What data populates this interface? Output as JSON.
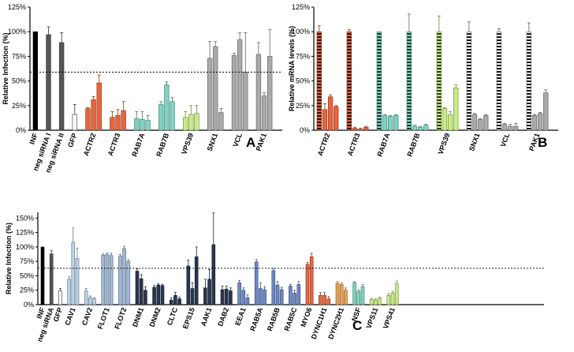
{
  "chart_data": [
    {
      "panel": "A",
      "type": "bar",
      "ylabel": "Relative Infection (%)",
      "ylim": [
        0,
        125
      ],
      "yticks": [
        "0%",
        "25%",
        "50%",
        "75%",
        "100%",
        "125%"
      ],
      "reference_line": 59,
      "groups": [
        {
          "name": "INF",
          "color": "#000000",
          "values": [
            100
          ],
          "errors": [
            0
          ]
        },
        {
          "name": "neg siRNA I",
          "color": "#555555",
          "values": [
            97
          ],
          "errors": [
            8
          ]
        },
        {
          "name": "neg siRNA II",
          "color": "#555555",
          "values": [
            89
          ],
          "errors": [
            10
          ]
        },
        {
          "name": "GFP",
          "color": "#ffffff",
          "values": [
            16
          ],
          "errors": [
            10
          ]
        },
        {
          "name": "ACTR2",
          "color": "#e8643c",
          "values": [
            22,
            31,
            48
          ],
          "errors": [
            1,
            3,
            8
          ]
        },
        {
          "name": "ACTR3",
          "color": "#e8643c",
          "values": [
            13,
            15,
            20
          ],
          "errors": [
            6,
            6,
            9
          ]
        },
        {
          "name": "RAB7A",
          "color": "#7fd3c1",
          "values": [
            12,
            11,
            10
          ],
          "errors": [
            7,
            8,
            5
          ]
        },
        {
          "name": "RAB7B",
          "color": "#7fd3c1",
          "values": [
            26,
            46,
            29
          ],
          "errors": [
            3,
            3,
            4
          ]
        },
        {
          "name": "VPS39",
          "color": "#c8ec84",
          "values": [
            13,
            16,
            17
          ],
          "errors": [
            6,
            9,
            8
          ]
        },
        {
          "name": "SNX1",
          "color": "#aaaaaa",
          "values": [
            73,
            85,
            18
          ],
          "errors": [
            17,
            5,
            4
          ]
        },
        {
          "name": "VCL",
          "color": "#aaaaaa",
          "values": [
            76,
            92,
            59
          ],
          "errors": [
            2,
            7,
            40
          ]
        },
        {
          "name": "PAK1",
          "color": "#aaaaaa",
          "values": [
            77,
            35,
            75
          ],
          "errors": [
            12,
            3,
            27
          ]
        }
      ]
    },
    {
      "panel": "B",
      "type": "bar",
      "ylabel": "Relative mRNA levels (%)",
      "ylim": [
        0,
        125
      ],
      "yticks": [
        "0%",
        "25%",
        "50%",
        "75%",
        "100%",
        "125%"
      ],
      "groups": [
        {
          "name": "ACTR2",
          "color": "#e8643c",
          "control_style": "striped",
          "values": [
            100,
            21,
            34,
            24
          ],
          "errors": [
            6,
            6,
            2,
            1
          ]
        },
        {
          "name": "ACTR3",
          "color": "#e8643c",
          "control_style": "striped",
          "values": [
            100,
            2,
            1,
            3
          ],
          "errors": [
            2,
            1,
            1,
            1
          ]
        },
        {
          "name": "RAB7A",
          "color": "#7fd3c1",
          "control_style": "striped",
          "values": [
            100,
            15,
            14,
            15
          ],
          "errors": [
            0,
            1,
            1,
            1
          ]
        },
        {
          "name": "RAB7B",
          "color": "#7fd3c1",
          "control_style": "striped",
          "values": [
            100,
            4,
            3,
            5
          ],
          "errors": [
            18,
            1,
            1,
            1
          ]
        },
        {
          "name": "VPS39",
          "color": "#c8ec84",
          "control_style": "striped",
          "values": [
            100,
            22,
            16,
            43
          ],
          "errors": [
            16,
            1,
            3,
            3
          ]
        },
        {
          "name": "SNX1",
          "color": "#aaaaaa",
          "control_style": "striped",
          "values": [
            100,
            16,
            11,
            15
          ],
          "errors": [
            10,
            1,
            1,
            1
          ]
        },
        {
          "name": "VCL",
          "color": "#aaaaaa",
          "control_style": "striped",
          "values": [
            100,
            6,
            4,
            4
          ],
          "errors": [
            3,
            1,
            2,
            3
          ]
        },
        {
          "name": "PAK1",
          "color": "#aaaaaa",
          "control_style": "striped",
          "values": [
            100,
            15,
            17,
            38
          ],
          "errors": [
            9,
            1,
            1,
            3
          ]
        }
      ]
    },
    {
      "panel": "C",
      "type": "bar",
      "ylabel": "Relative Infection (%)",
      "ylim": [
        0,
        160
      ],
      "yticks": [
        "0%",
        "25%",
        "50%",
        "75%",
        "100%",
        "125%",
        "150%"
      ],
      "reference_line": 63,
      "groups": [
        {
          "name": "INF",
          "color": "#000000",
          "values": [
            100
          ],
          "errors": [
            0
          ]
        },
        {
          "name": "neg siRNA",
          "color": "#555555",
          "values": [
            88
          ],
          "errors": [
            6
          ]
        },
        {
          "name": "GFP",
          "color": "#ffffff",
          "values": [
            24
          ],
          "errors": [
            4
          ]
        },
        {
          "name": "CAV1",
          "color": "#b9d3e8",
          "values": [
            44,
            108,
            80
          ],
          "errors": [
            5,
            25,
            18
          ]
        },
        {
          "name": "CAV2",
          "color": "#b9d3e8",
          "values": [
            24,
            12,
            10
          ],
          "errors": [
            4,
            3,
            2
          ]
        },
        {
          "name": "FLOT1",
          "color": "#9fbad6",
          "values": [
            86,
            87,
            85
          ],
          "errors": [
            2,
            3,
            4
          ]
        },
        {
          "name": "FLOT2",
          "color": "#9fbad6",
          "values": [
            84,
            97,
            75
          ],
          "errors": [
            3,
            4,
            3
          ]
        },
        {
          "name": "DNM1",
          "color": "#2a3650",
          "values": [
            58,
            45,
            25
          ],
          "errors": [
            4,
            7,
            6
          ]
        },
        {
          "name": "DNM2",
          "color": "#2a3650",
          "values": [
            30,
            34,
            33
          ],
          "errors": [
            3,
            2,
            2
          ]
        },
        {
          "name": "CLTC",
          "color": "#2a3650",
          "values": [
            8,
            16,
            10
          ],
          "errors": [
            4,
            5,
            3
          ]
        },
        {
          "name": "EPS15",
          "color": "#2a3650",
          "values": [
            67,
            28,
            83
          ],
          "errors": [
            10,
            10,
            17
          ]
        },
        {
          "name": "AAK1",
          "color": "#2a3650",
          "values": [
            29,
            44,
            104
          ],
          "errors": [
            15,
            17,
            55
          ]
        },
        {
          "name": "DAB2",
          "color": "#2a3650",
          "values": [
            26,
            27,
            24
          ],
          "errors": [
            6,
            5,
            5
          ]
        },
        {
          "name": "EEA1",
          "color": "#6b86c4",
          "values": [
            38,
            25,
            12
          ],
          "errors": [
            4,
            4,
            5
          ]
        },
        {
          "name": "RAB5A",
          "color": "#6b86c4",
          "values": [
            74,
            28,
            26
          ],
          "errors": [
            4,
            10,
            5
          ]
        },
        {
          "name": "RAB5B",
          "color": "#6b86c4",
          "values": [
            59,
            34,
            26
          ],
          "errors": [
            4,
            6,
            4
          ]
        },
        {
          "name": "RAB5C",
          "color": "#6b86c4",
          "values": [
            32,
            20,
            35
          ],
          "errors": [
            3,
            5,
            5
          ]
        },
        {
          "name": "MYO6",
          "color": "#e8643c",
          "values": [
            70,
            83
          ],
          "errors": [
            3,
            6
          ]
        },
        {
          "name": "DYNC1H1",
          "color": "#e8643c",
          "values": [
            16,
            16,
            10
          ],
          "errors": [
            5,
            5,
            4
          ]
        },
        {
          "name": "DYNC2H1",
          "color": "#e8a050",
          "values": [
            37,
            35,
            25
          ],
          "errors": [
            3,
            3,
            4
          ]
        },
        {
          "name": "NSF",
          "color": "#7fd3c1",
          "values": [
            38,
            23,
            31
          ],
          "errors": [
            2,
            3,
            4
          ]
        },
        {
          "name": "VPS11",
          "color": "#c8ec84",
          "values": [
            9,
            8,
            11
          ],
          "errors": [
            2,
            2,
            2
          ]
        },
        {
          "name": "VPS41",
          "color": "#c8ec84",
          "values": [
            16,
            20,
            36
          ],
          "errors": [
            3,
            3,
            5
          ]
        }
      ]
    }
  ]
}
